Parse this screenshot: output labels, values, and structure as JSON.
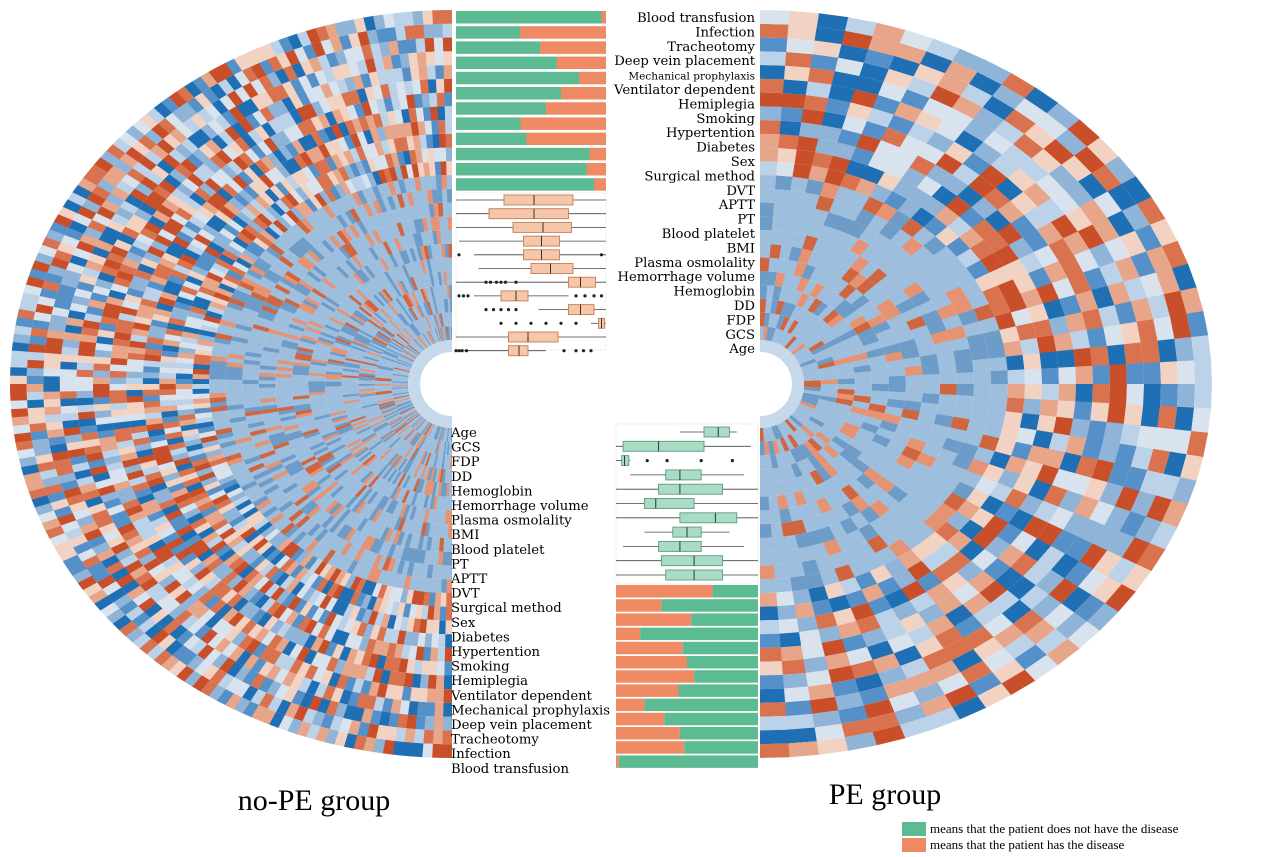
{
  "figure": {
    "left_group_label": "no-PE group",
    "right_group_label": "PE group",
    "legend": [
      {
        "color": "#5dbb94",
        "text": "means that the patient does not have the disease"
      },
      {
        "color": "#ee8a64",
        "text": "means that the patient has the disease"
      }
    ],
    "heatmap_colors": [
      "#1f6fb4",
      "#5591c8",
      "#8fb4d8",
      "#bcd2e8",
      "#d9e3ee",
      "#f2d3c3",
      "#e7a589",
      "#d9734f",
      "#c94f2b"
    ],
    "green": "#5dbb94",
    "orange": "#ee8a64",
    "box_fill_top": "#f6c6a8",
    "box_stroke_top": "#c27e5a",
    "box_fill_bottom": "#a9dcc5",
    "box_stroke_bottom": "#5c9c80"
  },
  "chart_data": [
    {
      "type": "bar",
      "panel": "no-PE group (top, stacked proportions)",
      "categories": [
        "Blood transfusion",
        "Infection",
        "Tracheotomy",
        "Deep vein placement",
        "Mechanical prophylaxis",
        "Ventilator dependent",
        "Hemiplegia",
        "Smoking",
        "Hypertention",
        "Diabetes",
        "Sex",
        "Surgical method"
      ],
      "series": [
        {
          "name": "means that the patient does not have the disease",
          "values": [
            0.97,
            0.43,
            0.56,
            0.67,
            0.82,
            0.7,
            0.6,
            0.43,
            0.47,
            0.89,
            0.87,
            0.92
          ]
        },
        {
          "name": "means that the patient has the disease",
          "values": [
            0.03,
            0.57,
            0.44,
            0.33,
            0.18,
            0.3,
            0.4,
            0.57,
            0.53,
            0.11,
            0.13,
            0.08
          ]
        }
      ]
    },
    {
      "type": "box",
      "panel": "no-PE group (top, boxplots)",
      "categories": [
        "DVT",
        "APTT",
        "PT",
        "Blood platelet",
        "BMI",
        "Plasma osmolality",
        "Hemorrhage volume",
        "Hemoglobin",
        "DD",
        "FDP",
        "GCS",
        "Age"
      ],
      "boxes": [
        {
          "q1": 0.32,
          "med": 0.52,
          "q3": 0.78,
          "lo": 0.0,
          "hi": 1.0,
          "outliers": []
        },
        {
          "q1": 0.22,
          "med": 0.52,
          "q3": 0.75,
          "lo": 0.0,
          "hi": 1.0,
          "outliers": []
        },
        {
          "q1": 0.38,
          "med": 0.58,
          "q3": 0.77,
          "lo": 0.0,
          "hi": 1.0,
          "outliers": []
        },
        {
          "q1": 0.45,
          "med": 0.57,
          "q3": 0.69,
          "lo": 0.02,
          "hi": 1.0,
          "outliers": []
        },
        {
          "q1": 0.45,
          "med": 0.57,
          "q3": 0.69,
          "lo": 0.12,
          "hi": 1.0,
          "outliers": [
            0.02,
            0.97
          ]
        },
        {
          "q1": 0.5,
          "med": 0.63,
          "q3": 0.78,
          "lo": 0.15,
          "hi": 1.0,
          "outliers": []
        },
        {
          "q1": 0.75,
          "med": 0.83,
          "q3": 0.93,
          "lo": 0.0,
          "hi": 1.0,
          "outliers": [
            0.2,
            0.23,
            0.27,
            0.3,
            0.33,
            0.4
          ]
        },
        {
          "q1": 0.3,
          "med": 0.4,
          "q3": 0.48,
          "lo": 0.12,
          "hi": 0.75,
          "outliers": [
            0.02,
            0.05,
            0.08,
            0.8,
            0.86,
            0.92,
            0.97
          ]
        },
        {
          "q1": 0.75,
          "med": 0.83,
          "q3": 0.92,
          "lo": 0.55,
          "hi": 1.0,
          "outliers": [
            0.2,
            0.25,
            0.3,
            0.35,
            0.4
          ]
        },
        {
          "q1": 0.95,
          "med": 0.97,
          "q3": 0.99,
          "lo": 0.9,
          "hi": 1.0,
          "outliers": [
            0.3,
            0.4,
            0.5,
            0.6,
            0.7,
            0.8
          ]
        },
        {
          "q1": 0.35,
          "med": 0.48,
          "q3": 0.68,
          "lo": 0.0,
          "hi": 1.0,
          "outliers": []
        },
        {
          "q1": 0.35,
          "med": 0.42,
          "q3": 0.48,
          "lo": 0.05,
          "hi": 0.6,
          "outliers": [
            0.0,
            0.02,
            0.04,
            0.07,
            0.72,
            0.8,
            0.85,
            0.9
          ]
        }
      ]
    },
    {
      "type": "box",
      "panel": "PE group (bottom, boxplots)",
      "categories": [
        "Age",
        "GCS",
        "FDP",
        "DD",
        "Hemoglobin",
        "Hemorrhage volume",
        "Plasma osmolality",
        "BMI",
        "Blood platelet",
        "PT",
        "APTT"
      ],
      "boxes": [
        {
          "q1": 0.62,
          "med": 0.72,
          "q3": 0.8,
          "lo": 0.45,
          "hi": 0.85,
          "outliers": []
        },
        {
          "q1": 0.05,
          "med": 0.3,
          "q3": 0.62,
          "lo": 0.0,
          "hi": 0.95,
          "outliers": []
        },
        {
          "q1": 0.04,
          "med": 0.06,
          "q3": 0.09,
          "lo": 0.0,
          "hi": 0.1,
          "outliers": [
            0.22,
            0.36,
            0.6,
            0.82
          ]
        },
        {
          "q1": 0.35,
          "med": 0.45,
          "q3": 0.6,
          "lo": 0.1,
          "hi": 0.9,
          "outliers": []
        },
        {
          "q1": 0.3,
          "med": 0.45,
          "q3": 0.75,
          "lo": 0.0,
          "hi": 1.0,
          "outliers": []
        },
        {
          "q1": 0.2,
          "med": 0.28,
          "q3": 0.55,
          "lo": 0.0,
          "hi": 1.0,
          "outliers": []
        },
        {
          "q1": 0.45,
          "med": 0.7,
          "q3": 0.85,
          "lo": 0.0,
          "hi": 1.0,
          "outliers": []
        },
        {
          "q1": 0.4,
          "med": 0.5,
          "q3": 0.6,
          "lo": 0.2,
          "hi": 0.8,
          "outliers": []
        },
        {
          "q1": 0.3,
          "med": 0.45,
          "q3": 0.6,
          "lo": 0.05,
          "hi": 0.9,
          "outliers": []
        },
        {
          "q1": 0.32,
          "med": 0.55,
          "q3": 0.75,
          "lo": 0.0,
          "hi": 1.0,
          "outliers": []
        },
        {
          "q1": 0.35,
          "med": 0.55,
          "q3": 0.75,
          "lo": 0.0,
          "hi": 1.0,
          "outliers": []
        }
      ]
    },
    {
      "type": "bar",
      "panel": "PE group (bottom, stacked proportions)",
      "categories": [
        "DVT",
        "Surgical method",
        "Sex",
        "Diabetes",
        "Hypertention",
        "Smoking",
        "Hemiplegia",
        "Ventilator dependent",
        "Mechanical prophylaxis",
        "Deep vein placement",
        "Tracheotomy",
        "Infection",
        "Blood transfusion"
      ],
      "series": [
        {
          "name": "means that the patient has the disease",
          "values": [
            0.68,
            0.32,
            0.53,
            0.17,
            0.47,
            0.5,
            0.55,
            0.44,
            0.2,
            0.34,
            0.45,
            0.48,
            0.02
          ]
        },
        {
          "name": "means that the patient does not have the disease",
          "values": [
            0.32,
            0.68,
            0.47,
            0.83,
            0.53,
            0.5,
            0.45,
            0.56,
            0.8,
            0.66,
            0.55,
            0.52,
            0.98
          ]
        }
      ]
    },
    {
      "type": "heatmap",
      "panel": "circular heatmap, no-PE group (left) and PE group (right)",
      "rows": [
        "Blood transfusion",
        "Infection",
        "Tracheotomy",
        "Deep vein placement",
        "Mechanical prophylaxis",
        "Ventilator dependent",
        "Hemiplegia",
        "Smoking",
        "Hypertention",
        "Diabetes",
        "Sex",
        "Surgical method",
        "DVT",
        "APTT",
        "PT",
        "Blood platelet",
        "BMI",
        "Plasma osmolality",
        "Hemorrhage volume",
        "Hemoglobin",
        "DD",
        "FDP",
        "GCS",
        "Age"
      ]
    }
  ]
}
